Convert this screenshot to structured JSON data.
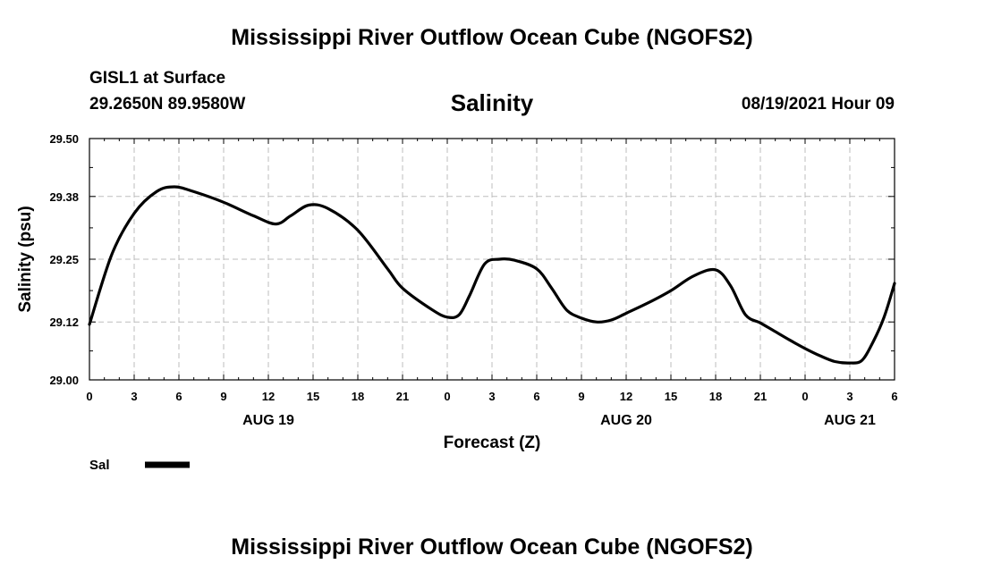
{
  "header": {
    "title": "Mississippi River Outflow Ocean Cube (NGOFS2)",
    "station": "GISL1 at Surface",
    "coords": "29.2650N  89.9580W",
    "datetime": "08/19/2021 Hour 09"
  },
  "footer": {
    "title": "Mississippi River Outflow Ocean Cube (NGOFS2)"
  },
  "chart_data": {
    "type": "line",
    "title": "Salinity",
    "xlabel": "Forecast (Z)",
    "ylabel": "Salinity (psu)",
    "ylim": [
      29.0,
      29.5
    ],
    "yticks": [
      29.0,
      29.12,
      29.25,
      29.38,
      29.5
    ],
    "ytick_labels": [
      "29.00",
      "29.12",
      "29.25",
      "29.38",
      "29.50"
    ],
    "xlim": [
      0,
      54
    ],
    "xticks": [
      0,
      3,
      6,
      9,
      12,
      15,
      18,
      21,
      24,
      27,
      30,
      33,
      36,
      39,
      42,
      45,
      48,
      51,
      54
    ],
    "xtick_labels": [
      "0",
      "3",
      "6",
      "9",
      "12",
      "15",
      "18",
      "21",
      "0",
      "3",
      "6",
      "9",
      "12",
      "15",
      "18",
      "21",
      "0",
      "3",
      "6"
    ],
    "date_labels": [
      {
        "x": 12,
        "label": "AUG 19"
      },
      {
        "x": 36,
        "label": "AUG 20"
      },
      {
        "x": 51,
        "label": "AUG 21"
      }
    ],
    "grid": true,
    "legend": {
      "placement": "bottom-left",
      "label": "Sal"
    },
    "series": [
      {
        "name": "Sal",
        "x": [
          0,
          1.5,
          3,
          4.5,
          5.7,
          7,
          9,
          11,
          12.5,
          13.5,
          14.7,
          16,
          18,
          20,
          21,
          23,
          24,
          24.8,
          25.5,
          26.5,
          27.5,
          28.5,
          30,
          31,
          32,
          33,
          34,
          35,
          36,
          37.5,
          39,
          40.5,
          42,
          43,
          44,
          45,
          46,
          47,
          48,
          49,
          50,
          51,
          51.8,
          52.5,
          53.3,
          54
        ],
        "values": [
          29.115,
          29.26,
          29.345,
          29.39,
          29.4,
          29.39,
          29.368,
          29.34,
          29.323,
          29.34,
          29.362,
          29.355,
          29.31,
          29.23,
          29.19,
          29.145,
          29.13,
          29.135,
          29.175,
          29.24,
          29.25,
          29.248,
          29.23,
          29.19,
          29.145,
          29.128,
          29.12,
          29.124,
          29.138,
          29.16,
          29.185,
          29.215,
          29.228,
          29.195,
          29.135,
          29.118,
          29.1,
          29.082,
          29.065,
          29.05,
          29.038,
          29.035,
          29.04,
          29.075,
          29.13,
          29.2
        ]
      }
    ]
  }
}
